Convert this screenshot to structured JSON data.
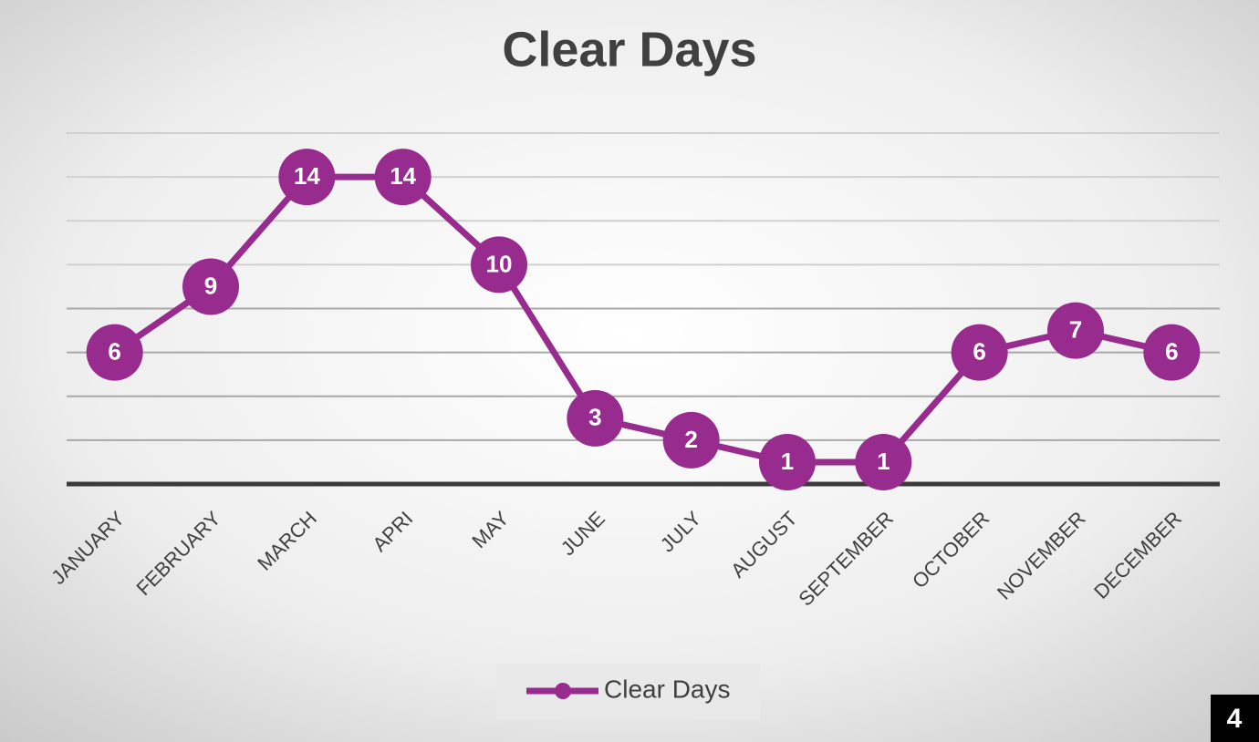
{
  "chart_data": {
    "type": "line",
    "title": "Clear Days",
    "categories": [
      "JANUARY",
      "FEBRUARY",
      "MARCH",
      "APRI",
      "MAY",
      "JUNE",
      "JULY",
      "AUGUST",
      "SEPTEMBER",
      "OCTOBER",
      "NOVEMBER",
      "DECEMBER"
    ],
    "series": [
      {
        "name": "Clear Days",
        "color": "#982b8e",
        "values": [
          6,
          9,
          14,
          14,
          10,
          3,
          2,
          1,
          1,
          6,
          7,
          6
        ]
      }
    ],
    "ylim": [
      0,
      16
    ],
    "yticks": [
      0,
      2,
      4,
      6,
      8,
      10,
      12,
      14,
      16
    ],
    "grid": true,
    "legend": "bottom"
  },
  "slide_number": "4"
}
